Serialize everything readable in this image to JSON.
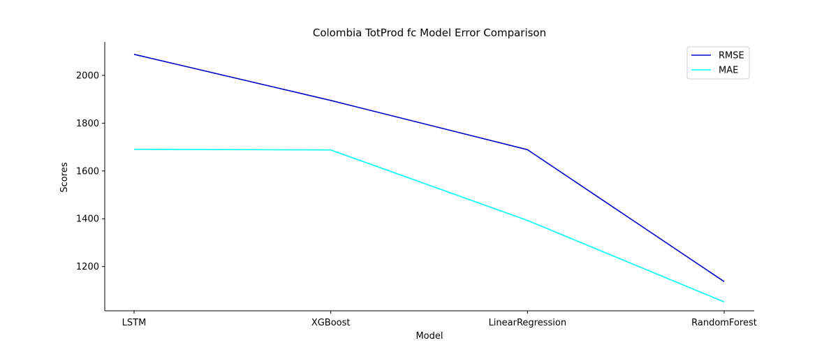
{
  "chart_data": {
    "type": "line",
    "title": "Colombia TotProd fc Model Error Comparison",
    "xlabel": "Model",
    "ylabel": "Scores",
    "categories": [
      "LSTM",
      "XGBoost",
      "LinearRegression",
      "RandomForest"
    ],
    "series": [
      {
        "name": "RMSE",
        "color": "#0000c8",
        "values": [
          2088,
          1895,
          1689,
          1137
        ]
      },
      {
        "name": "MAE",
        "color": "#00ffff",
        "values": [
          1691,
          1688,
          1393,
          1052
        ]
      }
    ],
    "ylim": [
      1015,
      2140
    ],
    "yticks": [
      1200,
      1400,
      1600,
      1800,
      2000
    ],
    "grid": false,
    "legend": "top-right"
  }
}
